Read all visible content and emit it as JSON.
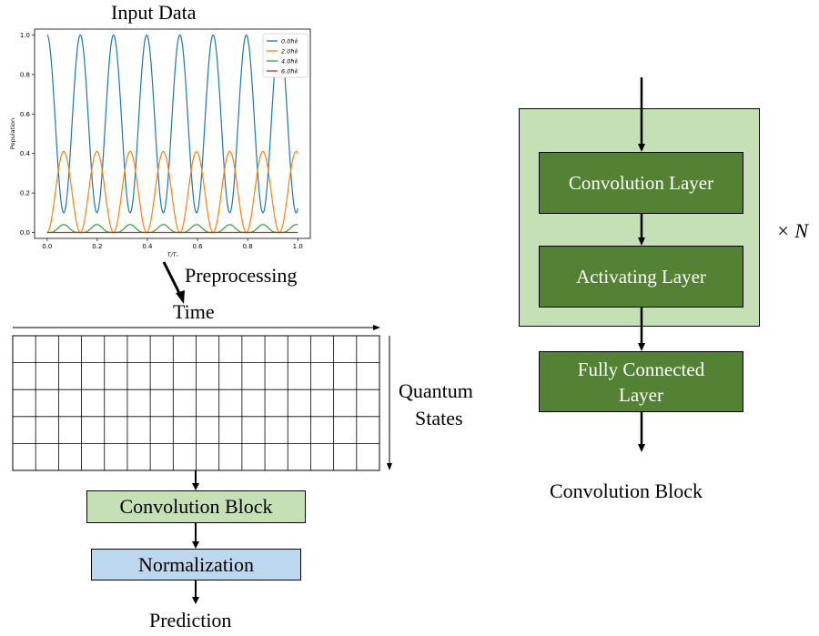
{
  "input_section": {
    "title": "Input Data",
    "preprocessing_label": "Preprocessing",
    "time_label": "Time",
    "states_label_line1": "Quantum",
    "states_label_line2": "States",
    "conv_block_label": "Convolution Block",
    "normalization_label": "Normalization",
    "prediction_label": "Prediction",
    "grid": {
      "rows": 5,
      "cols": 16
    }
  },
  "chart_data": {
    "type": "line",
    "title": "",
    "xlabel": "T/Tᵣ",
    "ylabel": "Population",
    "xlim": [
      -0.05,
      1.05
    ],
    "ylim": [
      -0.03,
      1.03
    ],
    "xticks": [
      "0.0",
      "0.2",
      "0.4",
      "0.6",
      "0.8",
      "1.0"
    ],
    "yticks": [
      "0.0",
      "0.2",
      "0.4",
      "0.6",
      "0.8",
      "1.0"
    ],
    "legend_position": "top-right",
    "grid": false,
    "series": [
      {
        "name": "0.0ħk",
        "color": "#1f77b4",
        "kind": "cos2",
        "amplitude": 0.9,
        "offset": 0.1,
        "cycles": 7.55,
        "phase": 0
      },
      {
        "name": "2.0ħk",
        "color": "#ff7f0e",
        "kind": "sin2",
        "amplitude": 0.41,
        "offset": 0,
        "cycles": 7.55,
        "phase": 0
      },
      {
        "name": "4.0ħk",
        "color": "#2ca02c",
        "kind": "sin4",
        "amplitude": 0.04,
        "offset": 0,
        "cycles": 7.55,
        "phase": 0
      },
      {
        "name": "6.0ħk",
        "color": "#d62728",
        "kind": "flat",
        "amplitude": 0.0,
        "offset": 0,
        "cycles": 0,
        "phase": 0
      }
    ]
  },
  "conv_block_detail": {
    "conv_layer_label": "Convolution Layer",
    "activating_layer_label": "Activating Layer",
    "fc_layer_line1": "Fully Connected",
    "fc_layer_line2": "Layer",
    "repeat_label": "× N",
    "caption": "Convolution Block"
  },
  "colors": {
    "light_green": "#c5e0b4",
    "dark_green": "#548235",
    "light_blue": "#bdd7ee",
    "border": "#000000"
  }
}
